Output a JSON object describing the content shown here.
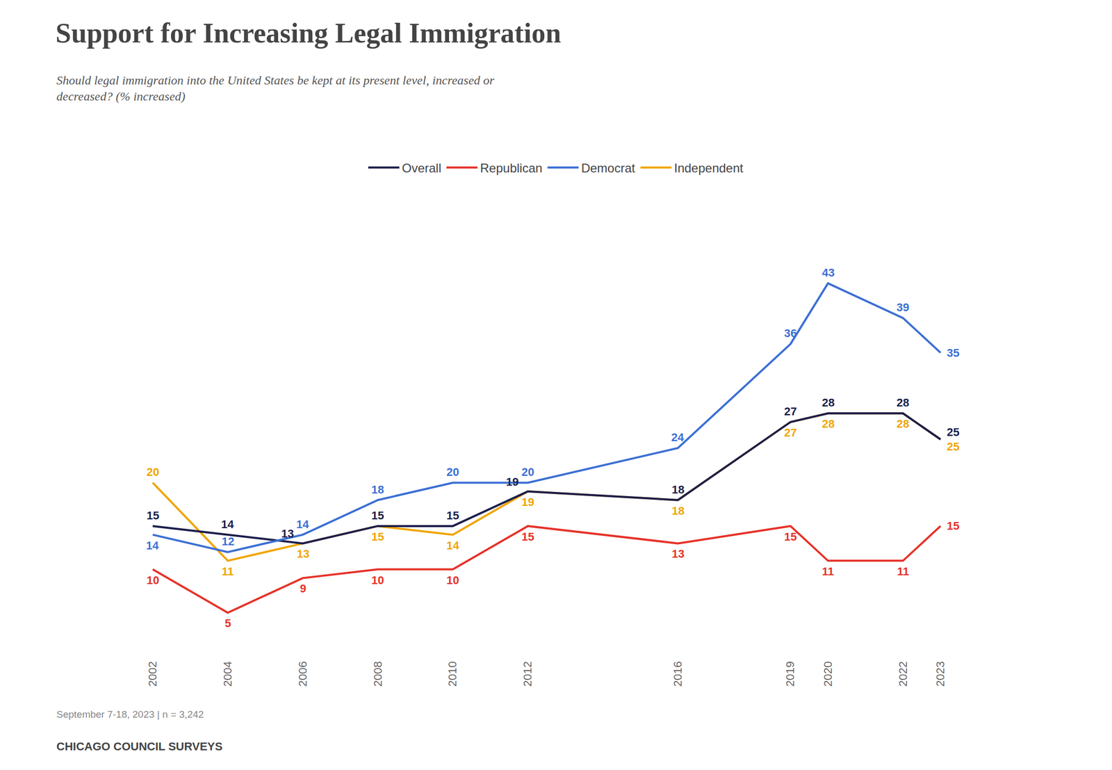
{
  "chart_data": {
    "type": "line",
    "title": "Support for Increasing Legal Immigration",
    "subtitle": "Should legal immigration into the United States be kept at its present level, increased or\ndecreased? (% increased)",
    "footnote": "September 7-18, 2023 | n = 3,242",
    "source": "CHICAGO COUNCIL SURVEYS",
    "x": [
      2002,
      2004,
      2006,
      2008,
      2010,
      2012,
      2016,
      2019,
      2020,
      2022,
      2023
    ],
    "series": [
      {
        "name": "Overall",
        "color": "#1b1e4b",
        "values": [
          15,
          14,
          13,
          15,
          15,
          19,
          18,
          27,
          28,
          28,
          25
        ]
      },
      {
        "name": "Republican",
        "color": "#e63229",
        "values": [
          10,
          5,
          9,
          10,
          10,
          15,
          13,
          15,
          11,
          11,
          15
        ]
      },
      {
        "name": "Democrat",
        "color": "#3b6fd4",
        "values": [
          14,
          12,
          14,
          18,
          20,
          20,
          24,
          36,
          43,
          39,
          35
        ]
      },
      {
        "name": "Independent",
        "color": "#f0a500",
        "values": [
          20,
          11,
          13,
          15,
          14,
          19,
          18,
          27,
          28,
          28,
          25
        ]
      }
    ],
    "xlim": [
      2000,
      2025.5
    ],
    "xticks": [
      2002,
      2004,
      2006,
      2008,
      2010,
      2012,
      2016,
      2019,
      2020,
      2022,
      2023
    ],
    "ylim": [
      0,
      50
    ],
    "grid": false,
    "legend": "top",
    "data_labels": true,
    "tick_labels": "x"
  }
}
